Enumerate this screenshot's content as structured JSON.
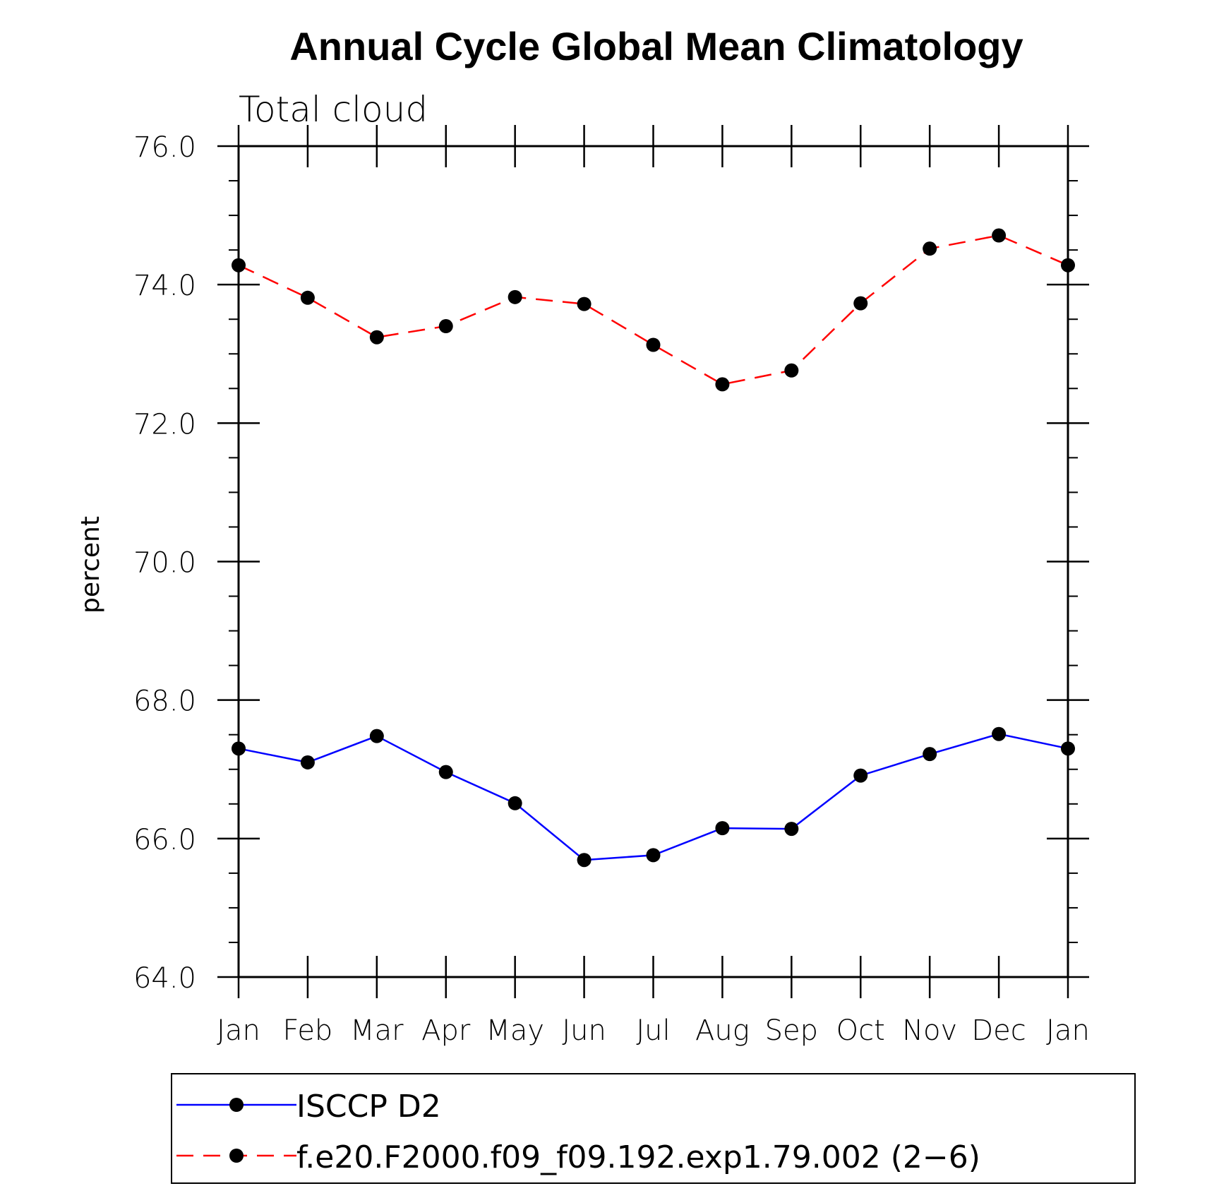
{
  "chart_data": {
    "type": "line",
    "title": "Annual Cycle Global Mean Climatology",
    "subtitle": "Total cloud",
    "xlabel": "",
    "ylabel": "percent",
    "ylim": [
      64.0,
      76.0
    ],
    "yticks": [
      "64.0",
      "66.0",
      "68.0",
      "70.0",
      "72.0",
      "74.0",
      "76.0"
    ],
    "ytick_values": [
      64,
      66,
      68,
      70,
      72,
      74,
      76
    ],
    "categories": [
      "Jan",
      "Feb",
      "Mar",
      "Apr",
      "May",
      "Jun",
      "Jul",
      "Aug",
      "Sep",
      "Oct",
      "Nov",
      "Dec",
      "Jan"
    ],
    "series": [
      {
        "name": "ISCCP D2",
        "color": "#0000ff",
        "dash": "solid",
        "values": [
          67.3,
          67.1,
          67.48,
          66.96,
          66.51,
          65.69,
          65.76,
          66.15,
          66.14,
          66.91,
          67.22,
          67.51,
          67.3
        ]
      },
      {
        "name": "f.e20.F2000.f09_f09.192.exp1.79.002 (2−6)",
        "color": "#ff0000",
        "dash": "dashed",
        "values": [
          74.28,
          73.81,
          73.24,
          73.4,
          73.82,
          73.72,
          73.13,
          72.56,
          72.76,
          73.73,
          74.52,
          74.71,
          74.28
        ]
      }
    ],
    "legend": "bottom"
  }
}
